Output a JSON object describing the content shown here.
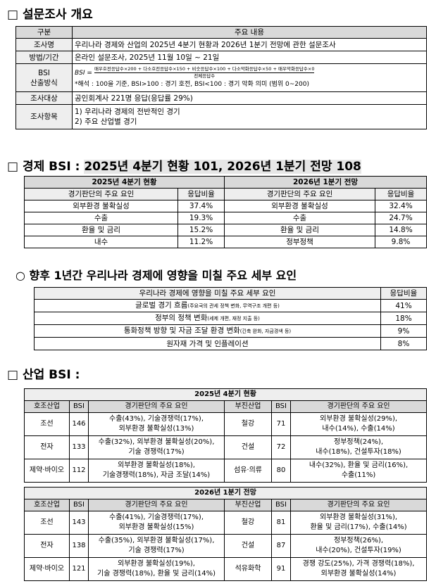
{
  "overview": {
    "title": "□ 설문조사 개요",
    "header": [
      "구분",
      "주요 내용"
    ],
    "rows": [
      {
        "label": [
          "조사명"
        ],
        "lines": [
          "우리나라 경제와 산업의 2025년 4분기 현황과 2026년 1분기 전망에 관한 설문조사"
        ]
      },
      {
        "label": [
          "방법/기간"
        ],
        "lines": [
          "온라인 설문조사, 2025년 11월 10일 ~ 21일"
        ]
      },
      {
        "label": [
          "BSI",
          "산출방식"
        ],
        "formula": {
          "lhs": "BSI =",
          "numerator": "매우호전응답수×200 + 다소호전응답수×150 + 비슷응답수×100 + 다소악화응답수×50 + 매우악화응답수×0",
          "denominator": "전체응답수"
        },
        "note": "*해석 : 100을 기준, BSI>100 : 경기 호전, BSI<100 : 경기 악화 의미 (범위 0~200)"
      },
      {
        "label": [
          "조사대상"
        ],
        "lines": [
          "공인회계사 221명 응답(응답률 29%)"
        ]
      },
      {
        "label": [
          "조사항목"
        ],
        "lines": [
          "1) 우리나라 경제의 전반적인 경기",
          "2) 주요 산업별 경기"
        ]
      }
    ]
  },
  "economy": {
    "title_prefix": "□ 경제 BSI : ",
    "title_highlight": "2025년 4분기 현황 101, 2026년 1분기 전망 108",
    "groups": [
      {
        "title": "2025년 4분기 현황",
        "header": [
          "경기판단의 주요 요인",
          "응답비율"
        ],
        "rows": [
          [
            "외부환경 불확실성",
            "37.4%"
          ],
          [
            "수출",
            "19.3%"
          ],
          [
            "환율 및 금리",
            "15.2%"
          ],
          [
            "내수",
            "11.2%"
          ]
        ]
      },
      {
        "title": "2026년 1분기 전망",
        "header": [
          "경기판단의 주요 요인",
          "응답비율"
        ],
        "rows": [
          [
            "외부환경 불확실성",
            "32.4%"
          ],
          [
            "수출",
            "24.7%"
          ],
          [
            "환율 및 금리",
            "14.8%"
          ],
          [
            "정부정책",
            "9.8%"
          ]
        ]
      }
    ]
  },
  "factors": {
    "title": "○ 향후 1년간 우리나라 경제에 영향을 미칠 주요 세부 요인",
    "header": [
      "우리나라 경제에 영향을 미칠 주요 세부 요인",
      "응답비율"
    ],
    "rows": [
      {
        "main": "글로벌 경기 흐름",
        "detail": "(주요국의 관세 정책 변화, 무역구조 개편 등)",
        "ratio": "41%"
      },
      {
        "main": "정부의 정책 변화",
        "detail": "(세제 개편, 재정 지출 등)",
        "ratio": "18%"
      },
      {
        "main": "통화정책 방향 및 자금 조달 환경 변화",
        "detail": "(긴축 완화, 자금경색 등)",
        "ratio": "9%"
      },
      {
        "main": "원자재 가격 및 인플레이션",
        "ratio": "8%"
      }
    ]
  },
  "industry": {
    "title": "□ 산업 BSI :",
    "tables": [
      {
        "title": "2025년 4분기 현황",
        "header": [
          "호조산업",
          "BSI",
          "경기판단의 주요 요인",
          "부진산업",
          "BSI",
          "경기판단의 주요 요인"
        ],
        "rows": [
          {
            "good": {
              "name": "조선",
              "bsi": 146,
              "factors": [
                "수출(43%), 기술경쟁력(17%),",
                "외부환경 불확실성(13%)"
              ]
            },
            "bad": {
              "name": "철강",
              "bsi": 71,
              "factors": [
                "외부환경 불확실성(29%),",
                "내수(14%), 수출(14%)"
              ]
            }
          },
          {
            "good": {
              "name": "전자",
              "bsi": 133,
              "factors": [
                "수출(32%), 외부환경 불확실성(20%),",
                "기술 경쟁력(17%)"
              ]
            },
            "bad": {
              "name": "건설",
              "bsi": 72,
              "factors": [
                "정부정책(24%),",
                "내수(18%), 건설투자(18%)"
              ]
            }
          },
          {
            "good": {
              "name": "제약·바이오",
              "bsi": 112,
              "factors": [
                "외부환경 불확실성(18%),",
                "기술경쟁력(18%), 자금 조달(14%)"
              ]
            },
            "bad": {
              "name": "섬유·의류",
              "bsi": 80,
              "factors": [
                "내수(32%), 환율 및 금리(16%),",
                "수출(11%)"
              ]
            }
          }
        ]
      },
      {
        "title": "2026년 1분기 전망",
        "header": [
          "호조산업",
          "BSI",
          "경기판단의 주요 요인",
          "부진산업",
          "BSI",
          "경기판단의 주요 요인"
        ],
        "rows": [
          {
            "good": {
              "name": "조선",
              "bsi": 143,
              "factors": [
                "수출(41%), 기술경쟁력(17%),",
                "외부환경 불확실성(15%)"
              ]
            },
            "bad": {
              "name": "철강",
              "bsi": 81,
              "factors": [
                "외부환경 불확실성(31%),",
                "환율 및 금리(17%), 수출(14%)"
              ]
            }
          },
          {
            "good": {
              "name": "전자",
              "bsi": 138,
              "factors": [
                "수출(35%), 외부환경 불확실성(17%),",
                "기술 경쟁력(17%)"
              ]
            },
            "bad": {
              "name": "건설",
              "bsi": 87,
              "factors": [
                "정부정책(26%),",
                "내수(20%), 건설투자(19%)"
              ]
            }
          },
          {
            "good": {
              "name": "제약·바이오",
              "bsi": 121,
              "factors": [
                "외부환경 불확실성(19%),",
                "기술 경쟁력(18%), 환율 및 금리(14%)"
              ]
            },
            "bad": {
              "name": "석유화학",
              "bsi": 91,
              "factors": [
                "경쟁 강도(25%), 가격 경쟁력(18%),",
                "외부환경 불확실성(14%)"
              ]
            }
          }
        ]
      }
    ]
  }
}
